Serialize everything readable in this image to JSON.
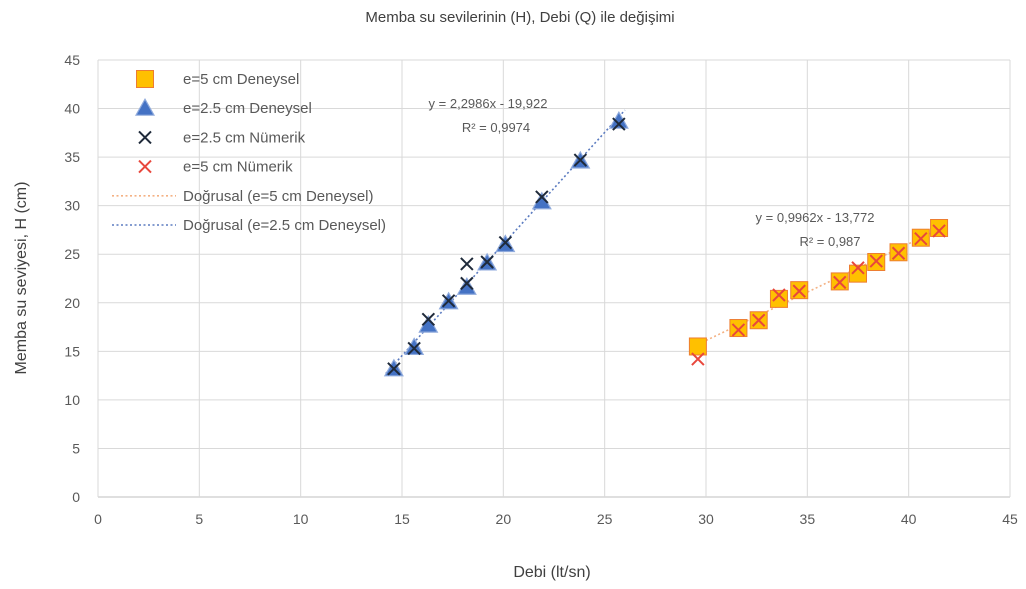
{
  "chart_data": {
    "type": "scatter",
    "title": "Memba su sevilerinin (H), Debi (Q) ile değişimi",
    "xlabel": "Debi (lt/sn)",
    "ylabel": "Memba su seviyesi, H (cm)",
    "xlim": [
      0,
      45
    ],
    "ylim": [
      0,
      45
    ],
    "xticks": [
      0,
      5,
      10,
      15,
      20,
      25,
      30,
      35,
      40,
      45
    ],
    "yticks": [
      0,
      5,
      10,
      15,
      20,
      25,
      30,
      35,
      40,
      45
    ],
    "grid": true,
    "legend_position": "top-left",
    "series": [
      {
        "name": "e=5 cm Deneysel",
        "marker": "square",
        "color": "#FFC000",
        "stroke": "#ED7D31",
        "points": [
          [
            29.6,
            15.5
          ],
          [
            31.6,
            17.4
          ],
          [
            32.6,
            18.2
          ],
          [
            33.6,
            20.4
          ],
          [
            34.6,
            21.3
          ],
          [
            36.6,
            22.2
          ],
          [
            37.5,
            23.0
          ],
          [
            38.4,
            24.2
          ],
          [
            39.5,
            25.2
          ],
          [
            40.6,
            26.7
          ],
          [
            41.5,
            27.7
          ]
        ]
      },
      {
        "name": "e=2.5 cm Deneysel",
        "marker": "triangle",
        "color": "#4472C4",
        "stroke": "#8FAADC",
        "points": [
          [
            14.6,
            13.2
          ],
          [
            15.6,
            15.4
          ],
          [
            16.3,
            17.7
          ],
          [
            17.3,
            20.1
          ],
          [
            18.2,
            21.6
          ],
          [
            19.2,
            24.1
          ],
          [
            20.1,
            26.0
          ],
          [
            21.9,
            30.4
          ],
          [
            23.8,
            34.6
          ],
          [
            25.7,
            38.7
          ]
        ]
      },
      {
        "name": "e=2.5 cm Nümerik",
        "marker": "x",
        "color": "#1F2A3A",
        "points": [
          [
            14.6,
            13.2
          ],
          [
            15.6,
            15.3
          ],
          [
            16.3,
            18.3
          ],
          [
            17.3,
            20.2
          ],
          [
            18.2,
            24.0
          ],
          [
            18.2,
            22.0
          ],
          [
            19.2,
            24.2
          ],
          [
            20.1,
            26.2
          ],
          [
            21.9,
            30.9
          ],
          [
            23.8,
            34.7
          ],
          [
            25.7,
            38.4
          ]
        ]
      },
      {
        "name": "e=5 cm Nümerik",
        "marker": "x",
        "color": "#E8473C",
        "points": [
          [
            29.6,
            14.2
          ],
          [
            31.6,
            17.2
          ],
          [
            32.6,
            18.2
          ],
          [
            33.6,
            20.8
          ],
          [
            34.6,
            21.2
          ],
          [
            36.6,
            22.1
          ],
          [
            37.5,
            23.6
          ],
          [
            38.4,
            24.3
          ],
          [
            39.5,
            25.1
          ],
          [
            40.6,
            26.6
          ],
          [
            41.5,
            27.4
          ]
        ]
      }
    ],
    "trendlines": [
      {
        "name": "Doğrusal (e=5 cm Deneysel)",
        "color": "#F4B183",
        "slope": 0.9962,
        "intercept": -13.772,
        "x_range": [
          29.6,
          41.5
        ],
        "equation": "y = 0,9962x - 13,772",
        "r2": "R² = 0,987"
      },
      {
        "name": "Doğrusal (e=2.5 cm Deneysel)",
        "color": "#5B7BC0",
        "slope": 2.2986,
        "intercept": -19.922,
        "x_range": [
          14.6,
          25.7
        ],
        "equation": "y = 2,2986x - 19,922",
        "r2": "R² = 0,9974"
      }
    ]
  }
}
